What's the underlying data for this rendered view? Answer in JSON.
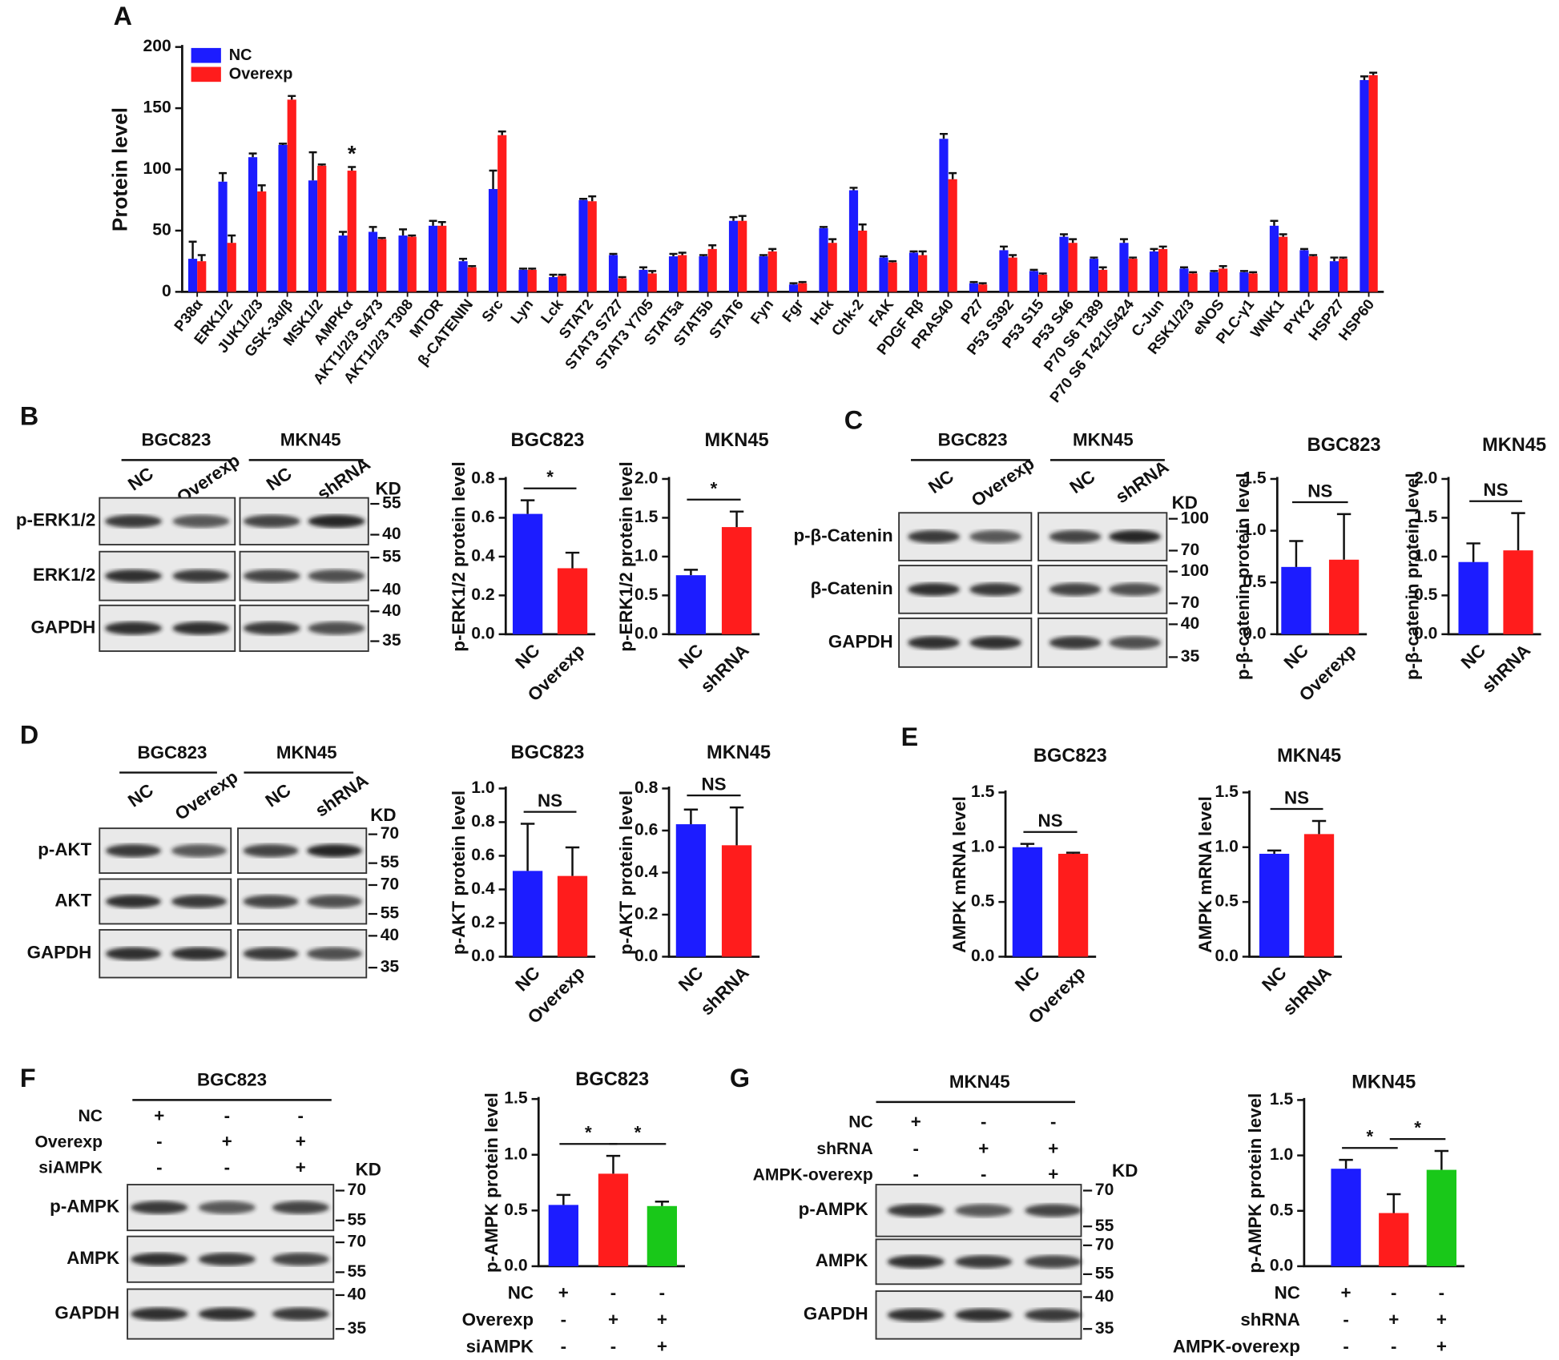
{
  "panel_labels": [
    "A",
    "B",
    "C",
    "D",
    "E",
    "F",
    "G"
  ],
  "chart_data": [
    {
      "type": "bar",
      "ylabel": "Protein level",
      "legend": "upper left",
      "annotations": [
        "*"
      ],
      "categories": [
        "P38α",
        "ERK1/2",
        "JUK1/2/3",
        "GSK-3α/β",
        "MSK1/2",
        "AMPKα",
        "AKT1/2/3 S473",
        "AKT1/2/3 T308",
        "MTOR",
        "β-CATENIN",
        "Src",
        "Lyn",
        "Lck",
        "STAT2",
        "STAT3 S727",
        "STAT3 Y705",
        "STAT5a",
        "STAT5b",
        "STAT6",
        "Fyn",
        "Fgr",
        "Hck",
        "Chk-2",
        "FAK",
        "PDGF Rβ",
        "PRAS40",
        "P27",
        "P53 S392",
        "P53 S15",
        "P53 S46",
        "P70 S6 T389",
        "P70 S6 T421/S424",
        "C-Jun",
        "RSK1/2/3",
        "eNOS",
        "PLC-γ1",
        "WNK1",
        "PYK2",
        "HSP27",
        "HSP60"
      ],
      "series": [
        {
          "name": "NC",
          "color": "#1c1cff",
          "values": [
            27,
            90,
            110,
            120,
            91,
            46,
            49,
            46,
            54,
            25,
            84,
            18,
            12,
            75,
            30,
            18,
            29,
            29,
            58,
            29,
            6,
            52,
            83,
            28,
            32,
            125,
            7,
            34,
            17,
            45,
            27,
            40,
            33,
            19,
            16,
            16,
            54,
            34,
            25,
            173
          ],
          "errors": [
            14,
            7,
            3,
            1,
            23,
            3,
            4,
            5,
            4,
            2,
            15,
            1,
            2,
            1,
            1,
            2,
            2,
            1,
            3,
            1,
            1,
            1,
            2,
            1,
            1,
            4,
            1,
            3,
            1,
            2,
            1,
            3,
            2,
            1,
            1,
            1,
            4,
            1,
            3,
            3
          ]
        },
        {
          "name": "Overexp",
          "color": "#ff1c1c",
          "values": [
            25,
            40,
            82,
            157,
            103,
            99,
            43,
            45,
            54,
            20,
            128,
            18,
            13,
            74,
            11,
            15,
            30,
            35,
            58,
            33,
            7,
            40,
            50,
            24,
            30,
            92,
            6,
            28,
            14,
            40,
            18,
            27,
            35,
            15,
            19,
            15,
            45,
            29,
            27,
            177
          ],
          "errors": [
            5,
            6,
            5,
            3,
            1,
            3,
            1,
            1,
            3,
            1,
            3,
            1,
            1,
            4,
            1,
            2,
            2,
            3,
            4,
            2,
            1,
            3,
            5,
            1,
            3,
            5,
            1,
            2,
            1,
            3,
            2,
            1,
            2,
            1,
            2,
            1,
            2,
            1,
            1,
            2
          ]
        }
      ],
      "ylim": [
        0,
        200
      ],
      "yticks": [
        0,
        50,
        100,
        150,
        200
      ]
    },
    {
      "type": "bar",
      "title": "BGC823",
      "ylabel": "p-ERK1/2 protein level",
      "categories": [
        "NC",
        "Overexp"
      ],
      "values": [
        0.62,
        0.34
      ],
      "errors": [
        0.07,
        0.08
      ],
      "colors": [
        "#1c1cff",
        "#ff1c1c"
      ],
      "ylim": [
        0,
        0.8
      ],
      "yticks": [
        {
          "value": 0,
          "label": "0.0"
        },
        0.2,
        0.4,
        0.6,
        0.8
      ],
      "annotations": [
        "*"
      ]
    },
    {
      "type": "bar",
      "title": "MKN45",
      "ylabel": "p-ERK1/2 protein level",
      "categories": [
        "NC",
        "shRNA"
      ],
      "values": [
        0.76,
        1.38
      ],
      "errors": [
        0.07,
        0.2
      ],
      "colors": [
        "#1c1cff",
        "#ff1c1c"
      ],
      "ylim": [
        0,
        2
      ],
      "yticks": [
        {
          "value": 0,
          "label": "0.0"
        },
        0.5,
        {
          "value": 1,
          "label": "1.0"
        },
        1.5,
        {
          "value": 2,
          "label": "2.0"
        }
      ],
      "annotations": [
        "*"
      ]
    },
    {
      "type": "bar",
      "title": "BGC823",
      "ylabel": "p-β-catenin  protein level",
      "categories": [
        "NC",
        "Overexp"
      ],
      "values": [
        0.65,
        0.72
      ],
      "errors": [
        0.25,
        0.44
      ],
      "colors": [
        "#1c1cff",
        "#ff1c1c"
      ],
      "ylim": [
        0,
        1.5
      ],
      "yticks": [
        {
          "value": 0,
          "label": "0.0"
        },
        0.5,
        {
          "value": 1,
          "label": "1.0"
        },
        1.5
      ],
      "annotations": [
        "NS"
      ]
    },
    {
      "type": "bar",
      "title": "MKN45",
      "ylabel": "p-β-catenin  protein level",
      "categories": [
        "NC",
        "shRNA"
      ],
      "values": [
        0.93,
        1.08
      ],
      "errors": [
        0.24,
        0.48
      ],
      "colors": [
        "#1c1cff",
        "#ff1c1c"
      ],
      "ylim": [
        0,
        2
      ],
      "yticks": [
        {
          "value": 0,
          "label": "0.0"
        },
        0.5,
        {
          "value": 1,
          "label": "1.0"
        },
        1.5,
        {
          "value": 2,
          "label": "2.0"
        }
      ],
      "annotations": [
        "NS"
      ]
    },
    {
      "type": "bar",
      "title": "BGC823",
      "ylabel": "p-AKT protein level",
      "categories": [
        "NC",
        "Overexp"
      ],
      "values": [
        0.51,
        0.48
      ],
      "errors": [
        0.28,
        0.17
      ],
      "colors": [
        "#1c1cff",
        "#ff1c1c"
      ],
      "ylim": [
        0,
        1
      ],
      "yticks": [
        {
          "value": 0,
          "label": "0.0"
        },
        0.2,
        0.4,
        0.6,
        0.8,
        {
          "value": 1,
          "label": "1.0"
        }
      ],
      "annotations": [
        "NS"
      ]
    },
    {
      "type": "bar",
      "title": "MKN45",
      "ylabel": "p-AKT protein level",
      "categories": [
        "NC",
        "shRNA"
      ],
      "values": [
        0.63,
        0.53
      ],
      "errors": [
        0.07,
        0.18
      ],
      "colors": [
        "#1c1cff",
        "#ff1c1c"
      ],
      "ylim": [
        0,
        0.8
      ],
      "yticks": [
        {
          "value": 0,
          "label": "0.0"
        },
        0.2,
        0.4,
        0.6,
        0.8
      ],
      "annotations": [
        "NS"
      ]
    },
    {
      "type": "bar",
      "title": "BGC823",
      "ylabel": "AMPK mRNA level",
      "categories": [
        "NC",
        "Overexp"
      ],
      "values": [
        1.0,
        0.94
      ],
      "errors": [
        0.03,
        0.01
      ],
      "colors": [
        "#1c1cff",
        "#ff1c1c"
      ],
      "ylim": [
        0,
        1.5
      ],
      "yticks": [
        {
          "value": 0,
          "label": "0.0"
        },
        0.5,
        {
          "value": 1,
          "label": "1.0"
        },
        1.5
      ],
      "annotations": [
        "NS"
      ]
    },
    {
      "type": "bar",
      "title": "MKN45",
      "ylabel": "AMPK mRNA level",
      "categories": [
        "NC",
        "shRNA"
      ],
      "values": [
        0.94,
        1.12
      ],
      "errors": [
        0.03,
        0.12
      ],
      "colors": [
        "#1c1cff",
        "#ff1c1c"
      ],
      "ylim": [
        0,
        1.5
      ],
      "yticks": [
        {
          "value": 0,
          "label": "0.0"
        },
        0.5,
        {
          "value": 1,
          "label": "1.0"
        },
        1.5
      ],
      "annotations": [
        "NS"
      ]
    },
    {
      "type": "bar",
      "title": "BGC823",
      "ylabel": "p-AMPK protein level",
      "rows": [
        {
          "label": "NC",
          "marks": [
            "+",
            "-",
            "-"
          ]
        },
        {
          "label": "Overexp",
          "marks": [
            "-",
            "+",
            "+"
          ]
        },
        {
          "label": "siAMPK",
          "marks": [
            "-",
            "-",
            "+"
          ]
        }
      ],
      "values": [
        0.55,
        0.83,
        0.54
      ],
      "errors": [
        0.09,
        0.16,
        0.04
      ],
      "colors": [
        "#1c1cff",
        "#ff1c1c",
        "#19c819"
      ],
      "ylim": [
        0,
        1.5
      ],
      "yticks": [
        {
          "value": 0,
          "label": "0.0"
        },
        0.5,
        {
          "value": 1,
          "label": "1.0"
        },
        1.5
      ],
      "annotations": [
        "*",
        "*"
      ]
    },
    {
      "type": "bar",
      "title": "MKN45",
      "ylabel": "p-AMPK protein level",
      "rows": [
        {
          "label": "NC",
          "marks": [
            "+",
            "-",
            "-"
          ]
        },
        {
          "label": "shRNA",
          "marks": [
            "-",
            "+",
            "+"
          ]
        },
        {
          "label": "AMPK-overexp",
          "marks": [
            "-",
            "-",
            "+"
          ]
        }
      ],
      "values": [
        0.88,
        0.48,
        0.87
      ],
      "errors": [
        0.08,
        0.17,
        0.17
      ],
      "colors": [
        "#1c1cff",
        "#ff1c1c",
        "#19c819"
      ],
      "ylim": [
        0,
        1.5
      ],
      "yticks": [
        {
          "value": 0,
          "label": "0.0"
        },
        0.5,
        {
          "value": 1,
          "label": "1.0"
        },
        1.5
      ],
      "annotations": [
        "*",
        "*"
      ]
    }
  ],
  "blots": [
    {
      "headers": [
        "BGC823",
        "MKN45"
      ],
      "lanes": [
        "NC",
        "Overexp",
        "NC",
        "shRNA"
      ],
      "kd": "KD",
      "rows": [
        {
          "label": "p-ERK1/2",
          "markers": [
            "55",
            "40"
          ]
        },
        {
          "label": "ERK1/2",
          "markers": [
            "55",
            "40"
          ]
        },
        {
          "label": "GAPDH",
          "markers": [
            "40",
            "35"
          ]
        }
      ]
    },
    {
      "headers": [
        "BGC823",
        "MKN45"
      ],
      "lanes": [
        "NC",
        "Overexp",
        "NC",
        "shRNA"
      ],
      "kd": "KD",
      "rows": [
        {
          "label": "p-β-Catenin",
          "markers": [
            "100",
            "70"
          ]
        },
        {
          "label": "β-Catenin",
          "markers": [
            "100",
            "70"
          ]
        },
        {
          "label": "GAPDH",
          "markers": [
            "40",
            "35"
          ]
        }
      ]
    },
    {
      "headers": [
        "BGC823",
        "MKN45"
      ],
      "lanes": [
        "NC",
        "Overexp",
        "NC",
        "shRNA"
      ],
      "kd": "KD",
      "rows": [
        {
          "label": "p-AKT",
          "markers": [
            "70",
            "55"
          ]
        },
        {
          "label": "AKT",
          "markers": [
            "70",
            "55"
          ]
        },
        {
          "label": "GAPDH",
          "markers": [
            "40",
            "35"
          ]
        }
      ]
    },
    {
      "headers": [
        "BGC823"
      ],
      "treatments": [
        {
          "label": "NC",
          "marks": [
            "+",
            "-",
            "-"
          ]
        },
        {
          "label": "Overexp",
          "marks": [
            "-",
            "+",
            "+"
          ]
        },
        {
          "label": "siAMPK",
          "marks": [
            "-",
            "-",
            "+"
          ]
        }
      ],
      "kd": "KD",
      "rows": [
        {
          "label": "p-AMPK",
          "markers": [
            "70",
            "55"
          ]
        },
        {
          "label": "AMPK",
          "markers": [
            "70",
            "55"
          ]
        },
        {
          "label": "GAPDH",
          "markers": [
            "40",
            "35"
          ]
        }
      ]
    },
    {
      "headers": [
        "MKN45"
      ],
      "treatments": [
        {
          "label": "NC",
          "marks": [
            "+",
            "-",
            "-"
          ]
        },
        {
          "label": "shRNA",
          "marks": [
            "-",
            "+",
            "+"
          ]
        },
        {
          "label": "AMPK-overexp",
          "marks": [
            "-",
            "-",
            "+"
          ]
        }
      ],
      "kd": "KD",
      "rows": [
        {
          "label": "p-AMPK",
          "markers": [
            "70",
            "55"
          ]
        },
        {
          "label": "AMPK",
          "markers": [
            "70",
            "55"
          ]
        },
        {
          "label": "GAPDH",
          "markers": [
            "40",
            "35"
          ]
        }
      ]
    }
  ]
}
